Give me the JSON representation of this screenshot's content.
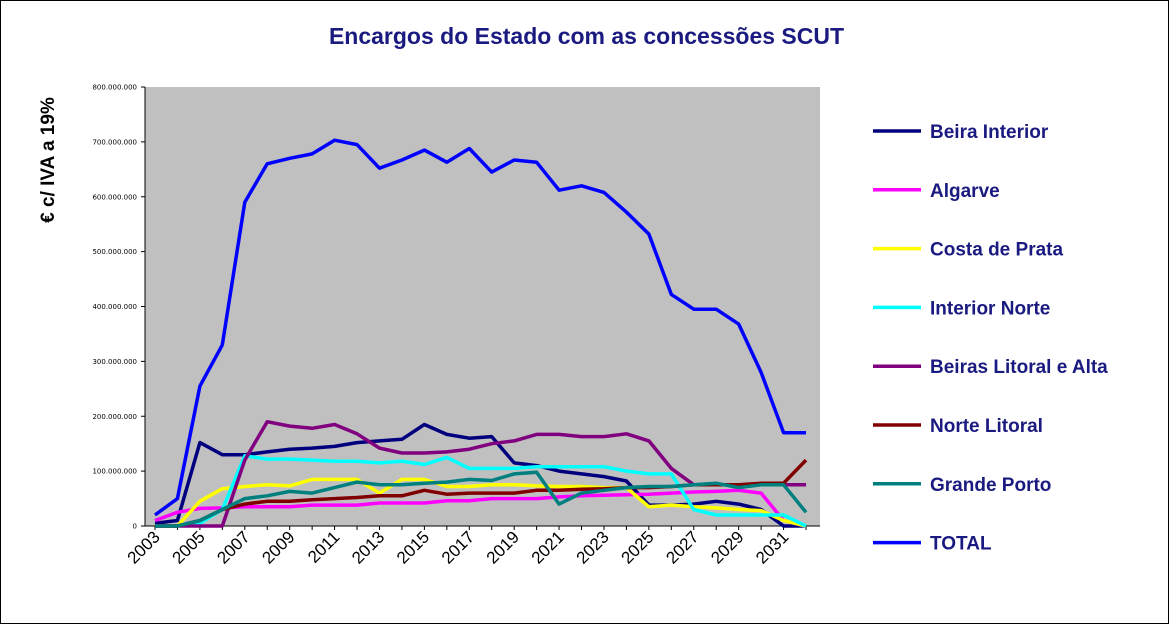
{
  "chart_data": {
    "type": "line",
    "title": "Encargos do Estado com as concessões SCUT",
    "ylabel": "€ c/ IVA a 19%",
    "xlabel": "",
    "ylim": [
      0,
      800000000
    ],
    "y_tick_labels": [
      "0",
      "100.000.000",
      "200.000.000",
      "300.000.000",
      "400.000.000",
      "500.000.000",
      "600.000.000",
      "700.000.000",
      "800.000.000"
    ],
    "x": [
      2003,
      2004,
      2005,
      2006,
      2007,
      2008,
      2009,
      2010,
      2011,
      2012,
      2013,
      2014,
      2015,
      2016,
      2017,
      2018,
      2019,
      2020,
      2021,
      2022,
      2023,
      2024,
      2025,
      2026,
      2027,
      2028,
      2029,
      2030,
      2031,
      2032
    ],
    "x_tick_labels": [
      "2003",
      "2005",
      "2007",
      "2009",
      "2011",
      "2013",
      "2015",
      "2017",
      "2019",
      "2021",
      "2023",
      "2025",
      "2027",
      "2029",
      "2031"
    ],
    "plot_background": "#c0c0c0",
    "legend_position": "right",
    "grid": false,
    "series": [
      {
        "name": "Beira Interior",
        "color": "#00007f",
        "values": [
          5000000,
          10000000,
          152000000,
          130000000,
          130000000,
          135000000,
          140000000,
          142000000,
          145000000,
          152000000,
          155000000,
          158000000,
          185000000,
          167000000,
          160000000,
          163000000,
          115000000,
          110000000,
          100000000,
          95000000,
          90000000,
          82000000,
          38000000,
          38000000,
          40000000,
          45000000,
          40000000,
          30000000,
          0,
          0
        ]
      },
      {
        "name": "Algarve",
        "color": "#ff00ff",
        "values": [
          10000000,
          25000000,
          32000000,
          33000000,
          35000000,
          35000000,
          35000000,
          38000000,
          38000000,
          38000000,
          42000000,
          42000000,
          42000000,
          46000000,
          46000000,
          50000000,
          50000000,
          50000000,
          53000000,
          55000000,
          56000000,
          57000000,
          58000000,
          60000000,
          62000000,
          63000000,
          65000000,
          60000000,
          10000000,
          0
        ]
      },
      {
        "name": "Costa de Prata",
        "color": "#ffff00",
        "values": [
          0,
          0,
          45000000,
          68000000,
          72000000,
          75000000,
          73000000,
          85000000,
          85000000,
          85000000,
          60000000,
          85000000,
          85000000,
          72000000,
          72000000,
          75000000,
          75000000,
          73000000,
          72000000,
          72000000,
          70000000,
          70000000,
          35000000,
          38000000,
          35000000,
          33000000,
          30000000,
          28000000,
          10000000,
          0
        ]
      },
      {
        "name": "Interior Norte",
        "color": "#00ffff",
        "values": [
          0,
          0,
          5000000,
          30000000,
          128000000,
          122000000,
          122000000,
          120000000,
          118000000,
          118000000,
          115000000,
          118000000,
          112000000,
          125000000,
          105000000,
          105000000,
          105000000,
          108000000,
          108000000,
          108000000,
          108000000,
          100000000,
          95000000,
          95000000,
          30000000,
          20000000,
          20000000,
          20000000,
          20000000,
          0
        ]
      },
      {
        "name": "Beiras Litoral e Alta",
        "color": "#800080",
        "values": [
          0,
          0,
          0,
          0,
          120000000,
          190000000,
          182000000,
          178000000,
          185000000,
          168000000,
          142000000,
          133000000,
          133000000,
          135000000,
          140000000,
          150000000,
          155000000,
          167000000,
          167000000,
          163000000,
          163000000,
          168000000,
          155000000,
          105000000,
          75000000,
          75000000,
          75000000,
          75000000,
          75000000,
          75000000
        ]
      },
      {
        "name": "Norte Litoral",
        "color": "#800000",
        "values": [
          0,
          0,
          10000000,
          30000000,
          40000000,
          45000000,
          45000000,
          48000000,
          50000000,
          52000000,
          55000000,
          55000000,
          65000000,
          58000000,
          60000000,
          60000000,
          60000000,
          65000000,
          65000000,
          67000000,
          68000000,
          70000000,
          70000000,
          72000000,
          75000000,
          75000000,
          75000000,
          78000000,
          78000000,
          120000000
        ]
      },
      {
        "name": "Grande Porto",
        "color": "#007f7f",
        "values": [
          0,
          0,
          10000000,
          30000000,
          50000000,
          55000000,
          63000000,
          60000000,
          70000000,
          80000000,
          75000000,
          75000000,
          78000000,
          80000000,
          85000000,
          83000000,
          95000000,
          98000000,
          40000000,
          60000000,
          65000000,
          70000000,
          72000000,
          72000000,
          75000000,
          78000000,
          70000000,
          75000000,
          75000000,
          25000000
        ]
      },
      {
        "name": "TOTAL",
        "color": "#0000ff",
        "values": [
          20000000,
          50000000,
          255000000,
          330000000,
          590000000,
          660000000,
          670000000,
          678000000,
          703000000,
          695000000,
          652000000,
          667000000,
          685000000,
          663000000,
          688000000,
          645000000,
          667000000,
          663000000,
          612000000,
          620000000,
          608000000,
          572000000,
          532000000,
          422000000,
          395000000,
          395000000,
          368000000,
          280000000,
          170000000,
          170000000
        ]
      }
    ]
  }
}
